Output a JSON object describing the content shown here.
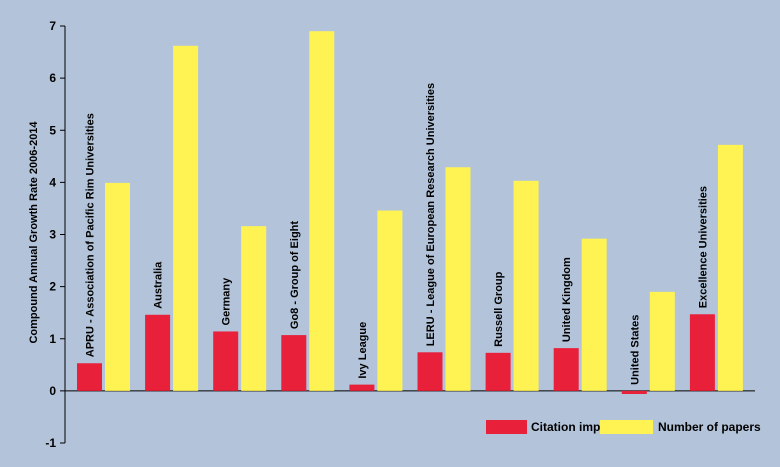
{
  "chart_data": {
    "type": "bar",
    "title": "",
    "xlabel": "",
    "ylabel": "Compound Annual Growth Rate 2006-2014",
    "ylim": [
      -1,
      7
    ],
    "yticks": [
      -1,
      0,
      1,
      2,
      3,
      4,
      5,
      6,
      7
    ],
    "grid": false,
    "legend_position": "bottom-right",
    "categories": [
      "APRU - Association of Pacific Rim Universities",
      "Australia",
      "Germany",
      "Go8 - Group of Eight",
      "Ivy League",
      "LERU - League of European Research Universities",
      "Russell Group",
      "United Kingdom",
      "United States",
      "Excellence Universities"
    ],
    "series": [
      {
        "name": "Citation impact",
        "color": "#e8203a",
        "values": [
          0.53,
          1.46,
          1.14,
          1.07,
          0.12,
          0.74,
          0.73,
          0.82,
          -0.06,
          1.47
        ]
      },
      {
        "name": "Number of papers",
        "color": "#fff354",
        "values": [
          3.99,
          6.62,
          3.16,
          6.9,
          3.46,
          4.29,
          4.03,
          2.92,
          1.9,
          4.72
        ]
      }
    ]
  }
}
